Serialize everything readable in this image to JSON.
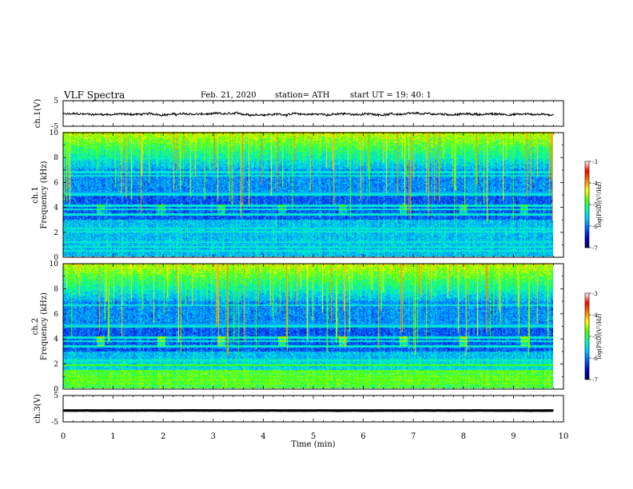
{
  "header": {
    "title": "VLF  Spectra",
    "date": "Feb. 21, 2020",
    "station": "station= ATH",
    "start": "start  UT  =    19: 40: 1"
  },
  "chart_data": [
    {
      "type": "line",
      "name": "ch1-waveform",
      "ylabel": "ch.1(V)",
      "ylim": [
        -5,
        5
      ],
      "yticks": [
        "5",
        "-5"
      ],
      "xlim": [
        0,
        10
      ],
      "level": -0.3,
      "amplitude": 0.6,
      "trace_end": 9.8
    },
    {
      "type": "heatmap",
      "name": "ch1-spectrogram",
      "ylabel_top": "ch.1",
      "ylabel": "Frequency (kHz)",
      "ylim": [
        0,
        10
      ],
      "yticks": [
        "0",
        "2",
        "4",
        "6",
        "8",
        "10"
      ],
      "xlim": [
        0,
        9.8
      ],
      "colorbar": {
        "label": "log(PSD)(V²/Hz)",
        "ticks": [
          "-3",
          "-4",
          "-5",
          "-6",
          "-7"
        ],
        "range": [
          -7,
          -3
        ]
      },
      "bands_khz": [
        0.5,
        0.8,
        1.2,
        2.0,
        2.3,
        3.4,
        3.8,
        4.1,
        5.0,
        6.5,
        6.8,
        7.9
      ]
    },
    {
      "type": "heatmap",
      "name": "ch2-spectrogram",
      "ylabel_top": "ch.2",
      "ylabel": "Frequency (kHz)",
      "ylim": [
        0,
        10
      ],
      "yticks": [
        "0",
        "2",
        "4",
        "6",
        "8",
        "10"
      ],
      "xlim": [
        0,
        9.8
      ],
      "colorbar": {
        "label": "log(PSD)(V²/Hz)",
        "ticks": [
          "-3",
          "-4",
          "-5",
          "-6",
          "-7"
        ],
        "range": [
          -7,
          -3
        ]
      },
      "bands_khz": [
        0.4,
        0.7,
        1.0,
        1.4,
        1.9,
        2.3,
        3.4,
        3.8,
        4.1,
        5.0,
        6.7,
        8.0
      ]
    },
    {
      "type": "line",
      "name": "ch3-waveform",
      "ylabel": "ch.3(V)",
      "ylim": [
        -5,
        5
      ],
      "yticks": [
        "5",
        "-5"
      ],
      "xlim": [
        0,
        10
      ],
      "level": -0.7,
      "amplitude": 0.05,
      "trace_end": 9.8
    }
  ],
  "xaxis": {
    "label": "Time  (min)",
    "ticks": [
      "0",
      "1",
      "2",
      "3",
      "4",
      "5",
      "6",
      "7",
      "8",
      "9",
      "10"
    ],
    "range": [
      0,
      10
    ]
  },
  "colors": {
    "colormap": [
      "#000050",
      "#0000c8",
      "#0060ff",
      "#00c8ff",
      "#00ffb4",
      "#50ff00",
      "#ffff00",
      "#ff8000",
      "#ff0000",
      "#ffffff"
    ]
  }
}
